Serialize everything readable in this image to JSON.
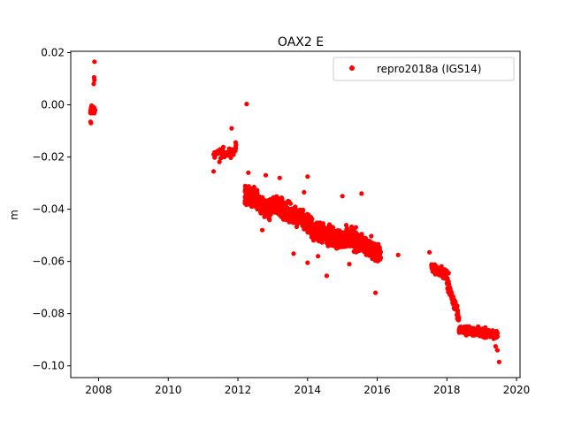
{
  "chart_data": {
    "type": "scatter",
    "title": "OAX2 E",
    "xlabel": "",
    "ylabel": "m",
    "xlim": [
      2007.2,
      2020.1
    ],
    "ylim": [
      -0.1045,
      0.0205
    ],
    "x_ticks": [
      2008,
      2010,
      2012,
      2014,
      2016,
      2018,
      2020
    ],
    "x_tick_labels": [
      "2008",
      "2010",
      "2012",
      "2014",
      "2016",
      "2018",
      "2020"
    ],
    "y_ticks": [
      0.02,
      0.0,
      -0.02,
      -0.04,
      -0.06,
      -0.08,
      -0.1
    ],
    "y_tick_labels": [
      "0.02",
      "0.00",
      "−0.02",
      "−0.04",
      "−0.06",
      "−0.08",
      "−0.10"
    ],
    "grid": false,
    "legend_position": "top-right",
    "series": [
      {
        "name": "repro2018a (IGS14)",
        "color": "#ff0000",
        "marker": "circle",
        "segments": [
          {
            "x0": 2007.75,
            "x1": 2007.9,
            "trend_start": -0.002,
            "trend_end": -0.002,
            "spread": 0.0025,
            "count": 40
          },
          {
            "x0": 2011.3,
            "x1": 2011.95,
            "trend_start": -0.02,
            "trend_end": -0.017,
            "spread": 0.004,
            "count": 50
          },
          {
            "x0": 2012.2,
            "x1": 2012.95,
            "trend_start": -0.034,
            "trend_end": -0.04,
            "spread": 0.006,
            "count": 260
          },
          {
            "x0": 2013.0,
            "x1": 2014.1,
            "trend_start": -0.038,
            "trend_end": -0.046,
            "spread": 0.006,
            "count": 320
          },
          {
            "x0": 2014.1,
            "x1": 2015.1,
            "trend_start": -0.048,
            "trend_end": -0.052,
            "spread": 0.006,
            "count": 300
          },
          {
            "x0": 2015.1,
            "x1": 2016.1,
            "trend_start": -0.05,
            "trend_end": -0.057,
            "spread": 0.006,
            "count": 300
          },
          {
            "x0": 2017.55,
            "x1": 2018.0,
            "trend_start": -0.062,
            "trend_end": -0.065,
            "spread": 0.003,
            "count": 140
          },
          {
            "x0": 2018.0,
            "x1": 2018.35,
            "trend_start": -0.068,
            "trend_end": -0.082,
            "spread": 0.004,
            "count": 90
          },
          {
            "x0": 2018.35,
            "x1": 2019.45,
            "trend_start": -0.086,
            "trend_end": -0.088,
            "spread": 0.0025,
            "count": 360
          }
        ],
        "points": [
          {
            "x": 2007.88,
            "y": 0.0165
          },
          {
            "x": 2007.87,
            "y": 0.0105
          },
          {
            "x": 2007.88,
            "y": 0.0095
          },
          {
            "x": 2007.86,
            "y": 0.008
          },
          {
            "x": 2007.78,
            "y": -0.007
          },
          {
            "x": 2007.77,
            "y": -0.0065
          },
          {
            "x": 2012.25,
            "y": 0.0003
          },
          {
            "x": 2011.3,
            "y": -0.0255
          },
          {
            "x": 2011.82,
            "y": -0.009
          },
          {
            "x": 2012.3,
            "y": -0.026
          },
          {
            "x": 2012.7,
            "y": -0.048
          },
          {
            "x": 2012.8,
            "y": -0.027
          },
          {
            "x": 2013.2,
            "y": -0.028
          },
          {
            "x": 2013.9,
            "y": -0.0335
          },
          {
            "x": 2014.0,
            "y": -0.0275
          },
          {
            "x": 2013.6,
            "y": -0.057
          },
          {
            "x": 2014.0,
            "y": -0.0605
          },
          {
            "x": 2014.3,
            "y": -0.058
          },
          {
            "x": 2014.55,
            "y": -0.0655
          },
          {
            "x": 2015.0,
            "y": -0.035
          },
          {
            "x": 2015.55,
            "y": -0.034
          },
          {
            "x": 2015.2,
            "y": -0.061
          },
          {
            "x": 2015.95,
            "y": -0.072
          },
          {
            "x": 2016.6,
            "y": -0.0575
          },
          {
            "x": 2017.5,
            "y": -0.0565
          },
          {
            "x": 2018.05,
            "y": -0.0645
          },
          {
            "x": 2019.5,
            "y": -0.0985
          },
          {
            "x": 2019.45,
            "y": -0.094
          },
          {
            "x": 2019.4,
            "y": -0.0925
          }
        ]
      }
    ]
  }
}
